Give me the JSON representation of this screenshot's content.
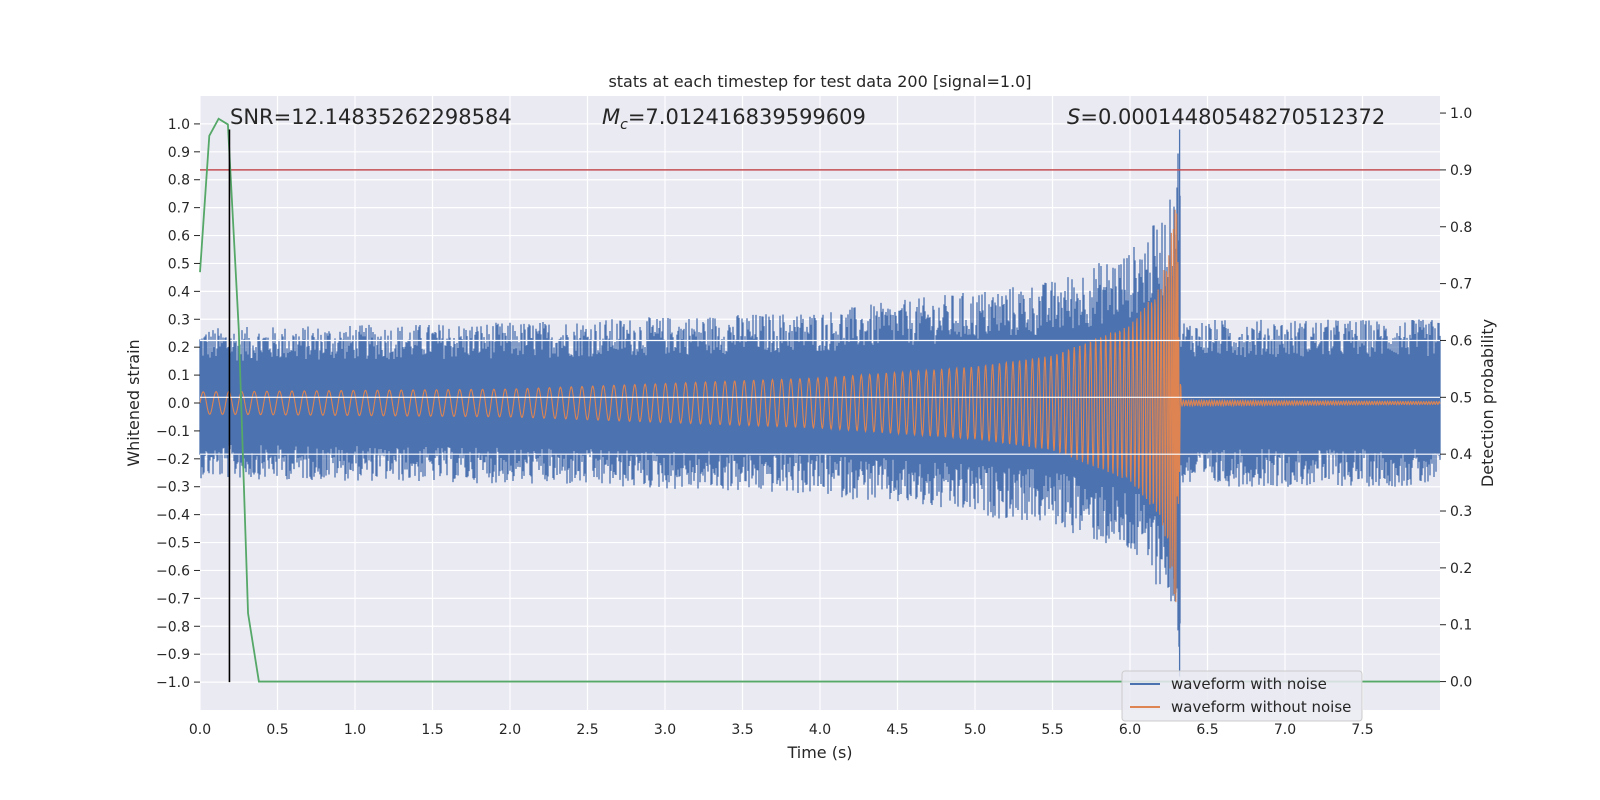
{
  "chart_data": {
    "type": "line",
    "title": "stats at each timestep for test data 200 [signal=1.0]",
    "xlabel": "Time (s)",
    "ylabel": "Whitened strain",
    "y2label": "Detection probability",
    "xlim": [
      0.0,
      8.0
    ],
    "ylim": [
      -1.1,
      1.1
    ],
    "y2lim": [
      -0.05,
      1.03
    ],
    "xticks": [
      "0.0",
      "0.5",
      "1.0",
      "1.5",
      "2.0",
      "2.5",
      "3.0",
      "3.5",
      "4.0",
      "4.5",
      "5.0",
      "5.5",
      "6.0",
      "6.5",
      "7.0",
      "7.5"
    ],
    "yticks": [
      "1.0",
      "0.9",
      "0.8",
      "0.7",
      "0.6",
      "0.5",
      "0.4",
      "0.3",
      "0.2",
      "0.1",
      "0.0",
      "−0.1",
      "−0.2",
      "−0.3",
      "−0.4",
      "−0.5",
      "−0.6",
      "−0.7",
      "−0.8",
      "−0.9",
      "−1.0"
    ],
    "y2ticks": [
      "1.0",
      "0.9",
      "0.8",
      "0.7",
      "0.6",
      "0.5",
      "0.4",
      "0.3",
      "0.2",
      "0.1",
      "0.0"
    ],
    "annotations": {
      "snr": "SNR=12.14835262298584",
      "mc_symbol": "M",
      "mc_sub": "c",
      "mc_value": "=7.012416839599609",
      "s_symbol": "S",
      "s_value": "=0.00014480548270512372"
    },
    "threshold_line": {
      "axis": "right",
      "value": 0.9,
      "color": "#c44e52"
    },
    "marker_line": {
      "x": 0.19,
      "y_from": -1.0,
      "y_to": 0.98,
      "color": "#000000"
    },
    "merger_time": 6.32,
    "series": [
      {
        "name": "waveform with noise",
        "color": "#4c72b0",
        "axis": "left",
        "noise_amplitude": [
          {
            "t": 0.0,
            "amp": 0.27
          },
          {
            "t": 2.0,
            "amp": 0.29
          },
          {
            "t": 4.0,
            "amp": 0.33
          },
          {
            "t": 5.5,
            "amp": 0.44
          },
          {
            "t": 6.0,
            "amp": 0.55
          },
          {
            "t": 6.25,
            "amp": 0.7
          },
          {
            "t": 6.32,
            "amp": 0.98
          },
          {
            "t": 6.33,
            "amp": 0.3
          },
          {
            "t": 8.0,
            "amp": 0.3
          }
        ]
      },
      {
        "name": "waveform without noise",
        "color": "#dd8452",
        "axis": "left",
        "chirp_envelope": [
          {
            "t": 0.0,
            "amp": 0.04
          },
          {
            "t": 2.0,
            "amp": 0.05
          },
          {
            "t": 4.0,
            "amp": 0.09
          },
          {
            "t": 5.0,
            "amp": 0.13
          },
          {
            "t": 5.5,
            "amp": 0.17
          },
          {
            "t": 6.0,
            "amp": 0.28
          },
          {
            "t": 6.2,
            "amp": 0.42
          },
          {
            "t": 6.3,
            "amp": 0.73
          },
          {
            "t": 6.33,
            "amp": 0.01
          },
          {
            "t": 8.0,
            "amp": 0.005
          }
        ]
      },
      {
        "name": "detection probability",
        "color": "#55a868",
        "axis": "right",
        "x": [
          0.0,
          0.06,
          0.12,
          0.18,
          0.25,
          0.31,
          0.38,
          0.44,
          8.0
        ],
        "y": [
          0.72,
          0.96,
          0.99,
          0.98,
          0.62,
          0.12,
          0.0,
          0.0,
          0.0
        ]
      }
    ],
    "legend": {
      "location": "lower-right",
      "entries": [
        {
          "label": "waveform with noise",
          "color": "#4c72b0"
        },
        {
          "label": "waveform without noise",
          "color": "#dd8452"
        }
      ]
    }
  }
}
